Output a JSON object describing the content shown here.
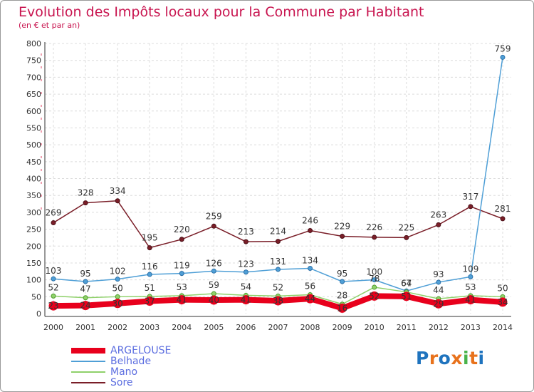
{
  "title": "Evolution des Impôts locaux pour la Commune par Habitant",
  "subtitle": "(en € et par an)",
  "logo": [
    "P",
    "r",
    "o",
    "x",
    "i",
    "t",
    "i"
  ],
  "colors": {
    "title": "#c8144f",
    "legend_text": "#5b6de0",
    "logo": [
      "#1e73be",
      "#e8721c",
      "#1e73be",
      "#e8721c",
      "#49b34a",
      "#e8721c",
      "#1e73be"
    ]
  },
  "chart_data": {
    "type": "line",
    "x": [
      "2000",
      "2001",
      "2002",
      "2003",
      "2004",
      "2005",
      "2006",
      "2007",
      "2008",
      "2009",
      "2010",
      "2011",
      "2012",
      "2013",
      "2014"
    ],
    "ylim": [
      0,
      800
    ],
    "yticks": [
      0,
      50,
      100,
      150,
      200,
      250,
      300,
      350,
      400,
      450,
      500,
      550,
      600,
      650,
      700,
      750,
      800
    ],
    "grid": true,
    "legend_position": "bottom-left",
    "series": [
      {
        "name": "ARGELOUSE",
        "color": "#e8001c",
        "values": [
          23,
          24,
          30,
          37,
          41,
          40,
          41,
          38,
          44,
          16,
          52,
          51,
          29,
          41,
          34
        ]
      },
      {
        "name": "Belhade",
        "color": "#4f9fd6",
        "values": [
          103,
          95,
          102,
          116,
          119,
          126,
          123,
          131,
          134,
          95,
          100,
          67,
          93,
          109,
          759
        ]
      },
      {
        "name": "Mano",
        "color": "#8fd16a",
        "values": [
          52,
          47,
          50,
          51,
          53,
          59,
          54,
          52,
          56,
          28,
          78,
          64,
          44,
          53,
          50
        ]
      },
      {
        "name": "Sore",
        "color": "#7a1e28",
        "values": [
          269,
          328,
          334,
          195,
          220,
          259,
          213,
          214,
          246,
          229,
          226,
          225,
          263,
          317,
          281
        ]
      }
    ]
  }
}
